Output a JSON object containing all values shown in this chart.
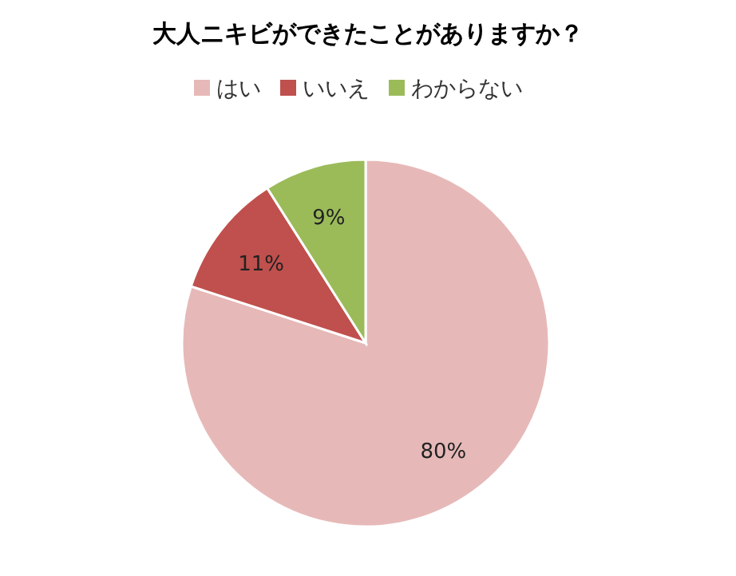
{
  "chart_data": {
    "type": "pie",
    "title": "大人ニキビができたことがありますか？",
    "categories": [
      "はい",
      "いいえ",
      "わからない"
    ],
    "values": [
      80,
      11,
      9
    ],
    "colors": [
      "#e6b9b8",
      "#c0504d",
      "#9bbb59"
    ],
    "value_labels": [
      "80%",
      "11%",
      "9%"
    ],
    "legend": "top"
  }
}
